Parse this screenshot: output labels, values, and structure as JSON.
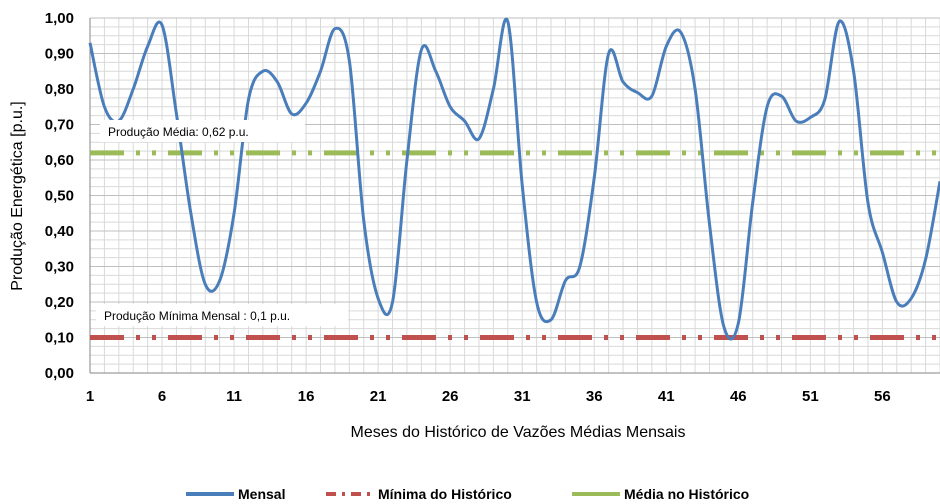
{
  "chart_data": {
    "type": "line",
    "title": "",
    "xlabel": "Meses do Histórico de Vazões Médias Mensais",
    "ylabel": "Produção Energética [p.u.]",
    "xlim": [
      1,
      60
    ],
    "ylim": [
      0,
      1
    ],
    "x_ticks": [
      1,
      6,
      11,
      16,
      21,
      26,
      31,
      36,
      41,
      46,
      51,
      56
    ],
    "y_ticks": [
      "0,00",
      "0,10",
      "0,20",
      "0,30",
      "0,40",
      "0,50",
      "0,60",
      "0,70",
      "0,80",
      "0,90",
      "1,00"
    ],
    "grid": true,
    "legend_position": "bottom",
    "x": [
      1,
      2,
      3,
      4,
      5,
      6,
      7,
      8,
      9,
      10,
      11,
      12,
      13,
      14,
      15,
      16,
      17,
      18,
      19,
      20,
      21,
      22,
      23,
      24,
      25,
      26,
      27,
      28,
      29,
      30,
      31,
      32,
      33,
      34,
      35,
      36,
      37,
      38,
      39,
      40,
      41,
      42,
      43,
      44,
      45,
      46,
      47,
      48,
      49,
      50,
      51,
      52,
      53,
      54,
      55,
      56,
      57,
      58,
      59,
      60
    ],
    "series": [
      {
        "name": "Mensal",
        "color": "#4a7ebb",
        "style": "solid",
        "values": [
          0.93,
          0.75,
          0.71,
          0.8,
          0.92,
          0.98,
          0.73,
          0.45,
          0.25,
          0.26,
          0.45,
          0.77,
          0.85,
          0.82,
          0.73,
          0.76,
          0.85,
          0.97,
          0.88,
          0.43,
          0.21,
          0.2,
          0.6,
          0.91,
          0.85,
          0.75,
          0.71,
          0.66,
          0.8,
          0.99,
          0.53,
          0.2,
          0.15,
          0.26,
          0.3,
          0.55,
          0.9,
          0.82,
          0.79,
          0.78,
          0.92,
          0.96,
          0.8,
          0.42,
          0.13,
          0.14,
          0.48,
          0.75,
          0.78,
          0.71,
          0.72,
          0.77,
          0.99,
          0.85,
          0.48,
          0.34,
          0.2,
          0.21,
          0.32,
          0.54
        ]
      },
      {
        "name": "Mínima do Histórico",
        "color": "#c0504d",
        "style": "dash-dot",
        "constant": 0.1
      },
      {
        "name": "Média no Histórico",
        "color": "#9bbb59",
        "style": "dash-dot",
        "constant": 0.62
      }
    ],
    "annotations": [
      {
        "text": "Produção Média: 0,62 p.u.",
        "y": 0.68
      },
      {
        "text": "Produção Mínima Mensal : 0,1 p.u.",
        "y": 0.16
      }
    ]
  }
}
